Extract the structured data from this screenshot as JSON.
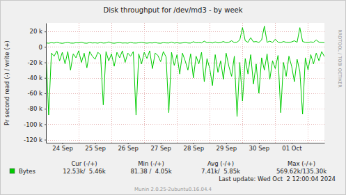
{
  "chart_data": {
    "type": "line",
    "title": "Disk throughput for /dev/md3 - by week",
    "y_label": "Pr second read (-) / write (+)",
    "watermark": "RRDTOOL / TOBI OETIKER",
    "categories": [
      null,
      null,
      null,
      null,
      null,
      null,
      "24 Sep",
      null,
      null,
      null,
      null,
      null,
      null,
      null,
      null,
      null,
      null,
      null,
      "25 Sep",
      null,
      null,
      null,
      null,
      null,
      null,
      null,
      null,
      null,
      null,
      null,
      "26 Sep",
      null,
      null,
      null,
      null,
      null,
      null,
      null,
      null,
      null,
      null,
      null,
      "27 Sep",
      null,
      null,
      null,
      null,
      null,
      null,
      null,
      null,
      null,
      null,
      null,
      "28 Sep",
      null,
      null,
      null,
      null,
      null,
      null,
      null,
      null,
      null,
      null,
      null,
      "29 Sep",
      null,
      null,
      null,
      null,
      null,
      null,
      null,
      null,
      null,
      null,
      null,
      "30 Sep",
      null,
      null,
      null,
      null,
      null,
      null,
      null,
      null,
      null,
      null,
      null,
      "01 Oct",
      null,
      null,
      null,
      null,
      null,
      null,
      null,
      null,
      null,
      null,
      null,
      null
    ],
    "series": [
      {
        "name": "Bytes",
        "color": "#00cc00",
        "values": [
          -6000,
          -88000,
          -8000,
          -12000,
          -5000,
          -18000,
          -7000,
          -22000,
          -6000,
          -30000,
          -9000,
          -14000,
          -5000,
          -20000,
          -8000,
          -27000,
          -6000,
          -12000,
          -16000,
          -7000,
          -10000,
          -75000,
          -6000,
          -18000,
          -9000,
          -25000,
          -7000,
          -14000,
          -5000,
          -20000,
          -8000,
          -12000,
          -6000,
          -88000,
          -9000,
          -22000,
          -7000,
          -15000,
          -5000,
          -28000,
          -8000,
          -11000,
          -19000,
          -6000,
          -13000,
          -85000,
          -7000,
          -24000,
          -10000,
          -35000,
          -8000,
          -18000,
          -30000,
          -9000,
          -40000,
          -12000,
          -22000,
          -7000,
          -45000,
          -15000,
          -28000,
          -50000,
          -10000,
          -33000,
          -18000,
          -42000,
          -8000,
          -25000,
          -38000,
          -12000,
          -90000,
          -20000,
          -70000,
          -15000,
          -35000,
          -10000,
          -48000,
          -22000,
          -60000,
          -14000,
          -30000,
          -9000,
          -42000,
          -18000,
          -28000,
          -11000,
          -85000,
          -20000,
          -38000,
          -12000,
          -25000,
          -45000,
          -16000,
          -32000,
          -87000,
          -14000,
          -30000,
          -10000,
          -22000,
          -8000,
          -18000,
          -6000,
          -12530
        ]
      },
      {
        "color": "#00cc00",
        "values": [
          5200,
          4800,
          5500,
          5000,
          6000,
          5100,
          4700,
          5300,
          5800,
          5000,
          4900,
          5400,
          5200,
          6200,
          5000,
          4800,
          5600,
          5100,
          5300,
          4900,
          5700,
          5000,
          5200,
          6500,
          5100,
          4800,
          5300,
          5600,
          5000,
          5200,
          4900,
          5800,
          5100,
          5000,
          5400,
          6000,
          5200,
          4900,
          5300,
          5100,
          5700,
          5000,
          4800,
          5500,
          5200,
          5100,
          6300,
          5000,
          5400,
          4900,
          5200,
          5800,
          5100,
          5000,
          6800,
          5300,
          5600,
          5200,
          7500,
          5400,
          6000,
          5100,
          6500,
          5200,
          5800,
          7000,
          5500,
          6000,
          8000,
          5600,
          6200,
          9000,
          25000,
          8000,
          6000,
          12000,
          6500,
          7000,
          5800,
          9000,
          27000,
          6000,
          7500,
          5800,
          10000,
          6200,
          5500,
          7000,
          6000,
          5800,
          6500,
          8000,
          6000,
          25000,
          7000,
          6000,
          5800,
          6500,
          6000,
          9000,
          6200,
          5800,
          5460
        ]
      }
    ],
    "ylim": [
      -124000,
      31000
    ],
    "yticks": [
      {
        "value": -120000,
        "label": "-120 k"
      },
      {
        "value": -100000,
        "label": "-100 k"
      },
      {
        "value": -80000,
        "label": "-80 k"
      },
      {
        "value": -60000,
        "label": "-60 k"
      },
      {
        "value": -40000,
        "label": "-40 k"
      },
      {
        "value": -20000,
        "label": "-20 k"
      },
      0,
      {
        "value": 20000,
        "label": "20 k"
      }
    ],
    "grid": true,
    "legend_table": {
      "columns": [
        "Cur (-/+)",
        "Min (-/+)",
        "Avg (-/+)",
        "Max (-/+)"
      ],
      "values": [
        "12.53k/  5.46k",
        "81.38 /  4.05k",
        "7.41k/  5.85k",
        "569.62k/135.30k"
      ]
    },
    "last_update": "Last update: Wed Oct  2 12:00:04 2024",
    "footer": "Munin 2.0.25-2ubuntu0.16.04.4"
  }
}
